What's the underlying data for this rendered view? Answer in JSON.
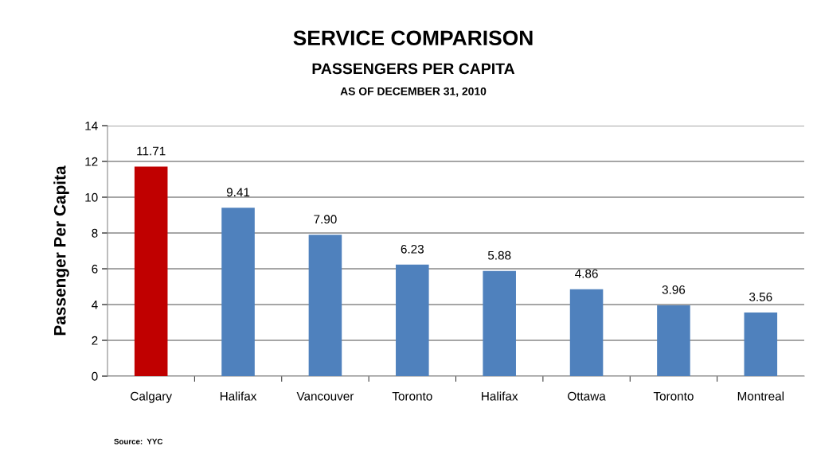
{
  "chart_data": {
    "type": "bar",
    "title": "SERVICE COMPARISON",
    "subtitle": "PASSENGERS PER CAPITA",
    "annotations": [
      "AS OF DECEMBER 31, 2010",
      "Source:  YYC"
    ],
    "ylabel": "Passenger Per Capita",
    "categories": [
      "Calgary",
      "Halifax",
      "Vancouver",
      "Toronto",
      "Halifax",
      "Ottawa",
      "Toronto",
      "Montreal"
    ],
    "values": [
      11.71,
      9.41,
      7.9,
      6.23,
      5.88,
      4.86,
      3.96,
      3.56
    ],
    "value_labels": [
      "11.71",
      "9.41",
      "7.90",
      "6.23",
      "5.88",
      "4.86",
      "3.96",
      "3.56"
    ],
    "colors": [
      "#c00000",
      "#4f81bd",
      "#4f81bd",
      "#4f81bd",
      "#4f81bd",
      "#4f81bd",
      "#4f81bd",
      "#4f81bd"
    ],
    "ylim": [
      0,
      14
    ],
    "yticks": [
      0,
      2,
      4,
      6,
      8,
      10,
      12,
      14
    ],
    "grid": "y",
    "legend": false
  }
}
